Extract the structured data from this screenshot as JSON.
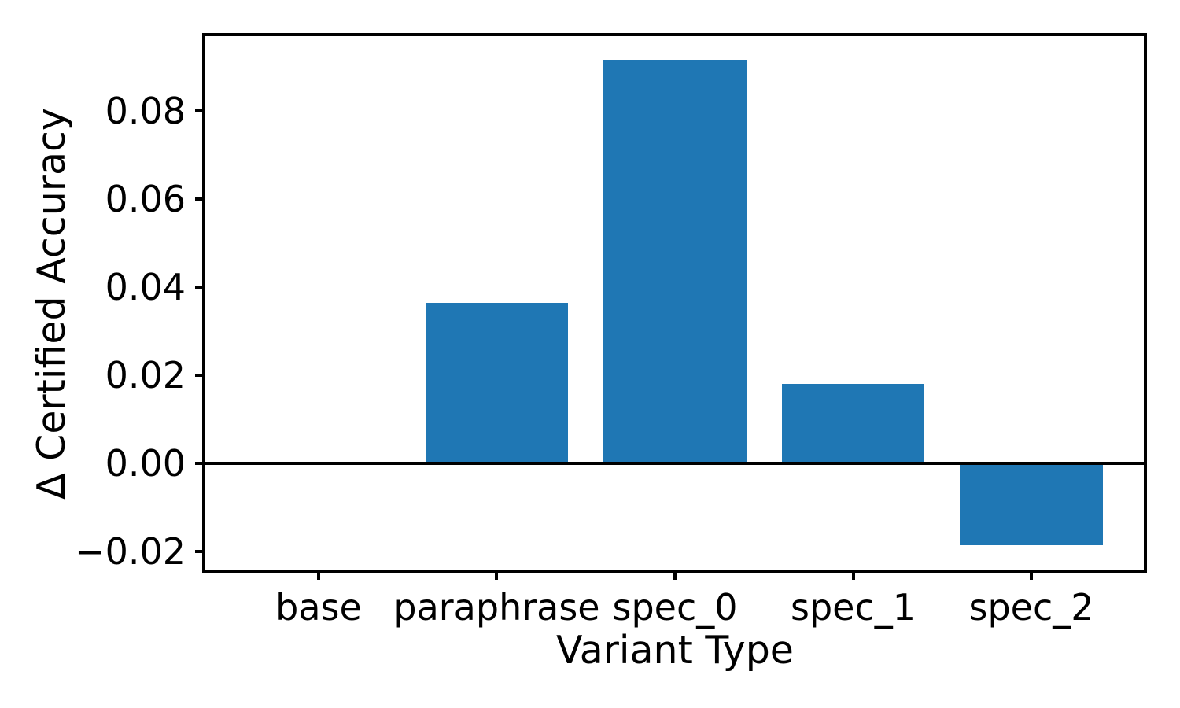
{
  "chart_data": {
    "type": "bar",
    "title": "",
    "xlabel": "Variant Type",
    "ylabel": "Δ Certified Accuracy",
    "categories": [
      "base",
      "paraphrase",
      "spec_0",
      "spec_1",
      "spec_2"
    ],
    "values": [
      0.0,
      0.0365,
      0.0917,
      0.0181,
      -0.0185
    ],
    "yticks": [
      -0.02,
      0.0,
      0.02,
      0.04,
      0.06,
      0.08
    ],
    "ytick_labels": [
      "−0.02",
      "0.00",
      "0.02",
      "0.04",
      "0.06",
      "0.08"
    ],
    "ylim": [
      -0.0242,
      0.0972
    ],
    "xlim": [
      -0.64,
      4.64
    ],
    "bar_width": 0.8,
    "bar_color": "#1f77b4",
    "axis_color": "#000000",
    "zero_baseline": true,
    "grid": false,
    "legend": null
  }
}
